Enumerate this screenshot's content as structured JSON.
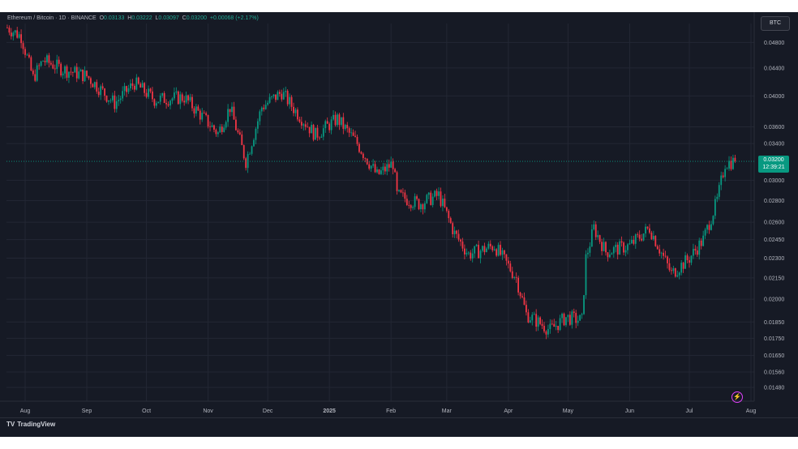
{
  "header": {
    "symbol": "Ethereum / Bitcoin · 1D · BINANCE",
    "open_label": "O",
    "open": "0.03133",
    "high_label": "H",
    "high": "0.03222",
    "low_label": "L",
    "low": "0.03097",
    "close_label": "C",
    "close": "0.03200",
    "change": "+0.00068 (+2.17%)"
  },
  "currency_badge": "BTC",
  "price_tag": {
    "price": "0.03200",
    "countdown": "12:39:21"
  },
  "footer": {
    "logo": "TV",
    "brand": "TradingView"
  },
  "colors": {
    "up": "#089981",
    "down": "#f23645",
    "background": "#161a25",
    "grid": "#232734",
    "text": "#b2b5be"
  },
  "chart_data": {
    "type": "candlestick",
    "log_scale": true,
    "y_ticks": [
      "0.04800",
      "0.04400",
      "0.04000",
      "0.03600",
      "0.03400",
      "0.03000",
      "0.02800",
      "0.02600",
      "0.02450",
      "0.02300",
      "0.02150",
      "0.02000",
      "0.01850",
      "0.01750",
      "0.01650",
      "0.01560",
      "0.01480"
    ],
    "x_ticks": [
      "Aug",
      "Sep",
      "Oct",
      "Nov",
      "Dec",
      "2025",
      "Feb",
      "Mar",
      "Apr",
      "May",
      "Jun",
      "Jul",
      "Aug"
    ],
    "approx_close_path": [
      {
        "x": "Jul 23 2024",
        "close": 0.0505
      },
      {
        "x": "Jul 30 2024",
        "close": 0.049
      },
      {
        "x": "Aug 5 2024",
        "close": 0.0425
      },
      {
        "x": "Aug 10 2024",
        "close": 0.0452
      },
      {
        "x": "Aug 20 2024",
        "close": 0.0438
      },
      {
        "x": "Sep 1 2024",
        "close": 0.0428
      },
      {
        "x": "Sep 15 2024",
        "close": 0.039
      },
      {
        "x": "Sep 25 2024",
        "close": 0.0418
      },
      {
        "x": "Oct 5 2024",
        "close": 0.0395
      },
      {
        "x": "Oct 20 2024",
        "close": 0.0398
      },
      {
        "x": "Nov 1 2024",
        "close": 0.0365
      },
      {
        "x": "Nov 6 2024",
        "close": 0.0352
      },
      {
        "x": "Nov 12 2024",
        "close": 0.0385
      },
      {
        "x": "Nov 20 2024",
        "close": 0.032
      },
      {
        "x": "Nov 28 2024",
        "close": 0.0385
      },
      {
        "x": "Dec 8 2024",
        "close": 0.0405
      },
      {
        "x": "Dec 15 2024",
        "close": 0.038
      },
      {
        "x": "Dec 25 2024",
        "close": 0.035
      },
      {
        "x": "Jan 5 2025",
        "close": 0.037
      },
      {
        "x": "Jan 15 2025",
        "close": 0.034
      },
      {
        "x": "Jan 25 2025",
        "close": 0.0305
      },
      {
        "x": "Feb 2 2025",
        "close": 0.0318
      },
      {
        "x": "Feb 4 2025",
        "close": 0.0285
      },
      {
        "x": "Feb 15 2025",
        "close": 0.0277
      },
      {
        "x": "Feb 25 2025",
        "close": 0.0285
      },
      {
        "x": "Mar 5 2025",
        "close": 0.025
      },
      {
        "x": "Mar 12 2025",
        "close": 0.0233
      },
      {
        "x": "Mar 25 2025",
        "close": 0.024
      },
      {
        "x": "Apr 5 2025",
        "close": 0.0215
      },
      {
        "x": "Apr 10 2025",
        "close": 0.019
      },
      {
        "x": "Apr 22 2025",
        "close": 0.018
      },
      {
        "x": "Apr 30 2025",
        "close": 0.0188
      },
      {
        "x": "May 8 2025",
        "close": 0.0186
      },
      {
        "x": "May 10 2025",
        "close": 0.023
      },
      {
        "x": "May 14 2025",
        "close": 0.0255
      },
      {
        "x": "May 20 2025",
        "close": 0.0235
      },
      {
        "x": "Jun 1 2025",
        "close": 0.024
      },
      {
        "x": "Jun 11 2025",
        "close": 0.0255
      },
      {
        "x": "Jun 22 2025",
        "close": 0.0218
      },
      {
        "x": "Jul 1 2025",
        "close": 0.023
      },
      {
        "x": "Jul 8 2025",
        "close": 0.0245
      },
      {
        "x": "Jul 15 2025",
        "close": 0.028
      },
      {
        "x": "Jul 19 2025",
        "close": 0.0318
      },
      {
        "x": "Jul 24 2025",
        "close": 0.032
      }
    ],
    "last_price": 0.032
  }
}
